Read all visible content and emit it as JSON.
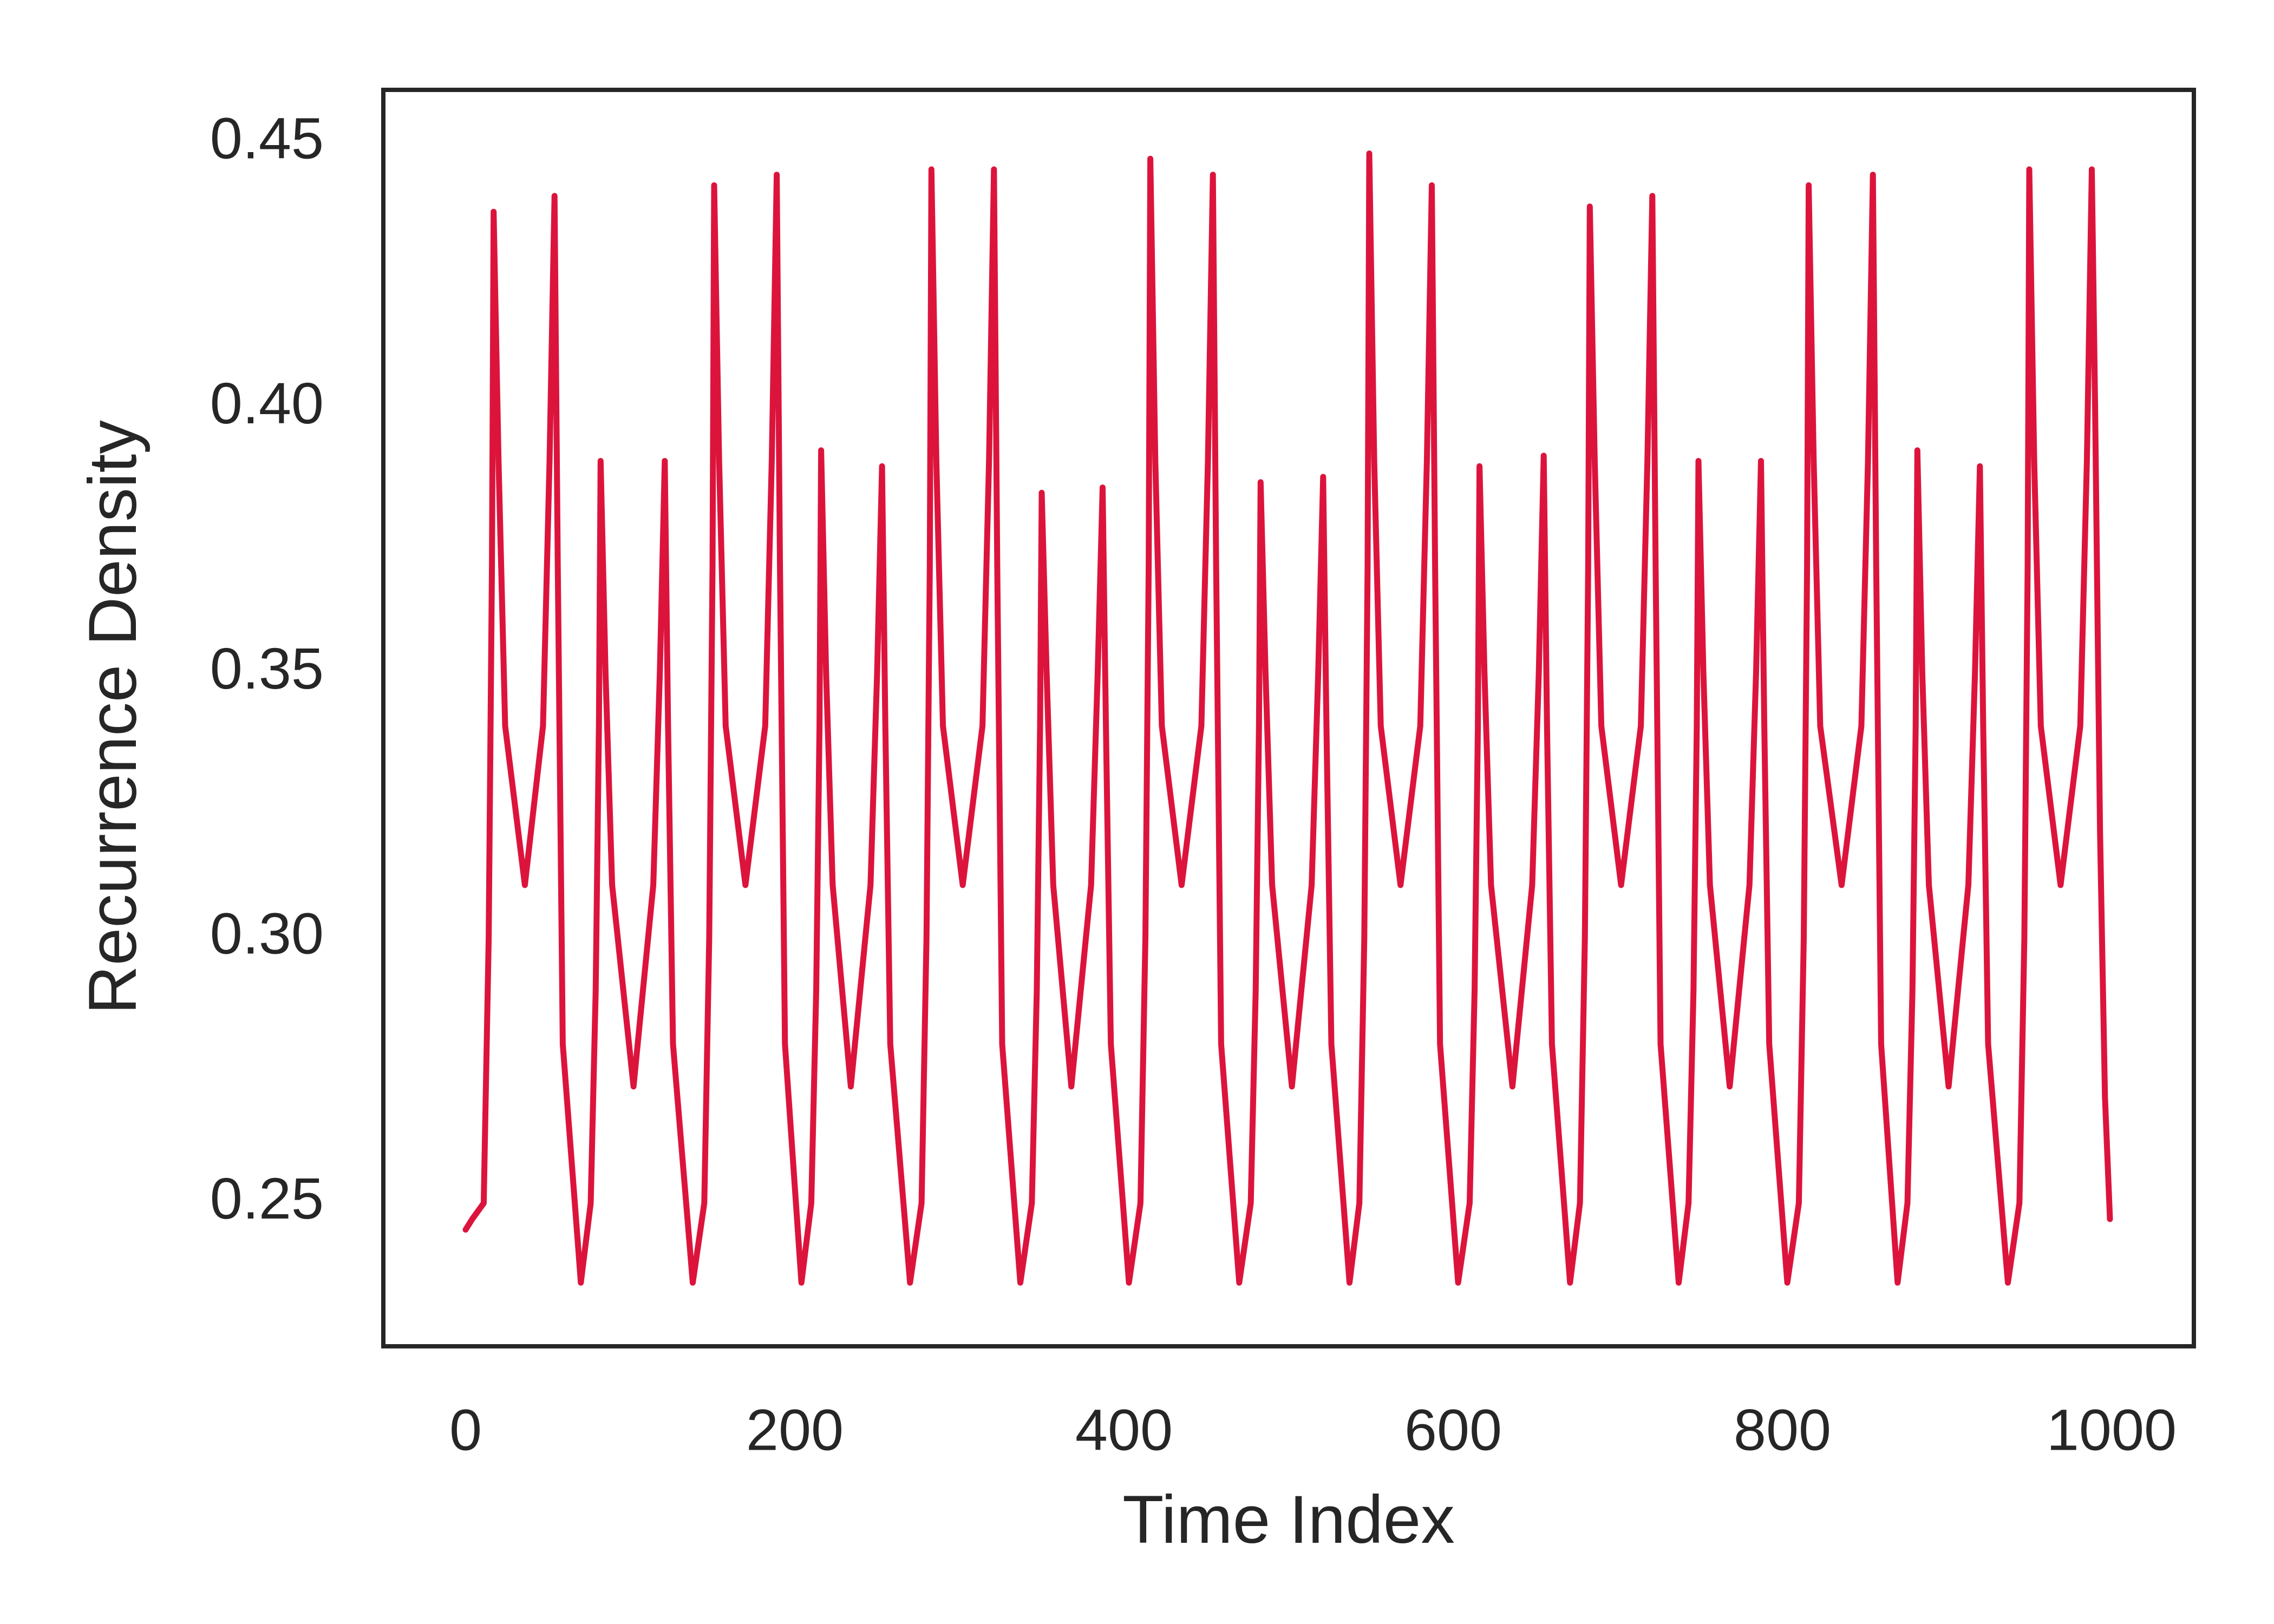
{
  "chart_data": {
    "type": "line",
    "xlabel": "Time Index",
    "ylabel": "Recurrence Density",
    "xlim": [
      -50,
      1050
    ],
    "ylim": [
      0.223,
      0.46
    ],
    "xticks": [
      0,
      200,
      400,
      600,
      800,
      1000
    ],
    "yticks": [
      0.25,
      {
        "value": 0.3,
        "label": "0.30"
      },
      0.35,
      {
        "value": 0.4,
        "label": "0.40"
      },
      0.45
    ],
    "grid": false,
    "color": "#dc143c",
    "x": [
      0,
      4,
      11,
      14,
      16,
      17,
      20,
      24,
      36,
      47,
      51,
      54,
      56,
      59,
      70,
      76,
      79,
      81,
      82,
      85,
      89,
      102,
      114,
      118,
      121,
      123,
      126,
      138,
      145,
      148,
      150,
      151,
      154,
      158,
      170,
      182,
      186,
      189,
      191,
      194,
      204,
      210,
      213,
      215,
      216,
      219,
      223,
      234,
      246,
      250,
      253,
      255,
      258,
      270,
      277,
      280,
      282,
      283,
      286,
      290,
      302,
      314,
      318,
      321,
      323,
      326,
      337,
      344,
      347,
      349,
      350,
      353,
      357,
      368,
      380,
      384,
      387,
      389,
      392,
      403,
      410,
      413,
      415,
      416,
      419,
      423,
      435,
      447,
      451,
      454,
      456,
      459,
      470,
      477,
      480,
      482,
      483,
      486,
      490,
      502,
      514,
      518,
      521,
      523,
      526,
      537,
      543,
      546,
      548,
      549,
      552,
      556,
      568,
      580,
      584,
      587,
      589,
      592,
      603,
      610,
      613,
      615,
      616,
      619,
      623,
      636,
      648,
      652,
      655,
      657,
      660,
      671,
      677,
      680,
      682,
      683,
      686,
      690,
      702,
      714,
      718,
      721,
      723,
      726,
      737,
      743,
      746,
      748,
      749,
      752,
      756,
      768,
      780,
      784,
      787,
      789,
      792,
      803,
      810,
      813,
      815,
      816,
      819,
      823,
      836,
      848,
      852,
      855,
      857,
      860,
      870,
      876,
      879,
      881,
      882,
      885,
      889,
      901,
      913,
      917,
      920,
      922,
      925,
      937,
      944,
      947,
      949,
      950,
      953,
      957,
      969,
      981,
      985,
      988,
      990,
      993,
      996,
      999
    ],
    "values": [
      0.245,
      0.247,
      0.25,
      0.3,
      0.37,
      0.437,
      0.39,
      0.34,
      0.31,
      0.34,
      0.39,
      0.44,
      0.37,
      0.28,
      0.235,
      0.25,
      0.29,
      0.34,
      0.39,
      0.35,
      0.31,
      0.272,
      0.31,
      0.35,
      0.39,
      0.34,
      0.28,
      0.235,
      0.25,
      0.3,
      0.37,
      0.442,
      0.39,
      0.34,
      0.31,
      0.34,
      0.39,
      0.444,
      0.37,
      0.28,
      0.235,
      0.25,
      0.29,
      0.34,
      0.392,
      0.35,
      0.31,
      0.272,
      0.31,
      0.35,
      0.389,
      0.34,
      0.28,
      0.235,
      0.25,
      0.3,
      0.37,
      0.445,
      0.39,
      0.34,
      0.31,
      0.34,
      0.39,
      0.445,
      0.37,
      0.28,
      0.235,
      0.25,
      0.29,
      0.34,
      0.384,
      0.35,
      0.31,
      0.272,
      0.31,
      0.35,
      0.385,
      0.34,
      0.28,
      0.235,
      0.25,
      0.3,
      0.37,
      0.447,
      0.39,
      0.34,
      0.31,
      0.34,
      0.39,
      0.444,
      0.37,
      0.28,
      0.235,
      0.25,
      0.29,
      0.34,
      0.386,
      0.35,
      0.31,
      0.272,
      0.31,
      0.35,
      0.387,
      0.34,
      0.28,
      0.235,
      0.25,
      0.3,
      0.37,
      0.448,
      0.39,
      0.34,
      0.31,
      0.34,
      0.39,
      0.442,
      0.37,
      0.28,
      0.235,
      0.25,
      0.29,
      0.34,
      0.389,
      0.35,
      0.31,
      0.272,
      0.31,
      0.35,
      0.391,
      0.34,
      0.28,
      0.235,
      0.25,
      0.3,
      0.37,
      0.438,
      0.39,
      0.34,
      0.31,
      0.34,
      0.39,
      0.44,
      0.37,
      0.28,
      0.235,
      0.25,
      0.29,
      0.34,
      0.39,
      0.35,
      0.31,
      0.272,
      0.31,
      0.35,
      0.39,
      0.34,
      0.28,
      0.235,
      0.25,
      0.3,
      0.37,
      0.442,
      0.39,
      0.34,
      0.31,
      0.34,
      0.39,
      0.444,
      0.37,
      0.28,
      0.235,
      0.25,
      0.29,
      0.34,
      0.392,
      0.35,
      0.31,
      0.272,
      0.31,
      0.35,
      0.389,
      0.34,
      0.28,
      0.235,
      0.25,
      0.3,
      0.37,
      0.445,
      0.39,
      0.34,
      0.31,
      0.34,
      0.39,
      0.445,
      0.4,
      0.32,
      0.27,
      0.247
    ]
  }
}
